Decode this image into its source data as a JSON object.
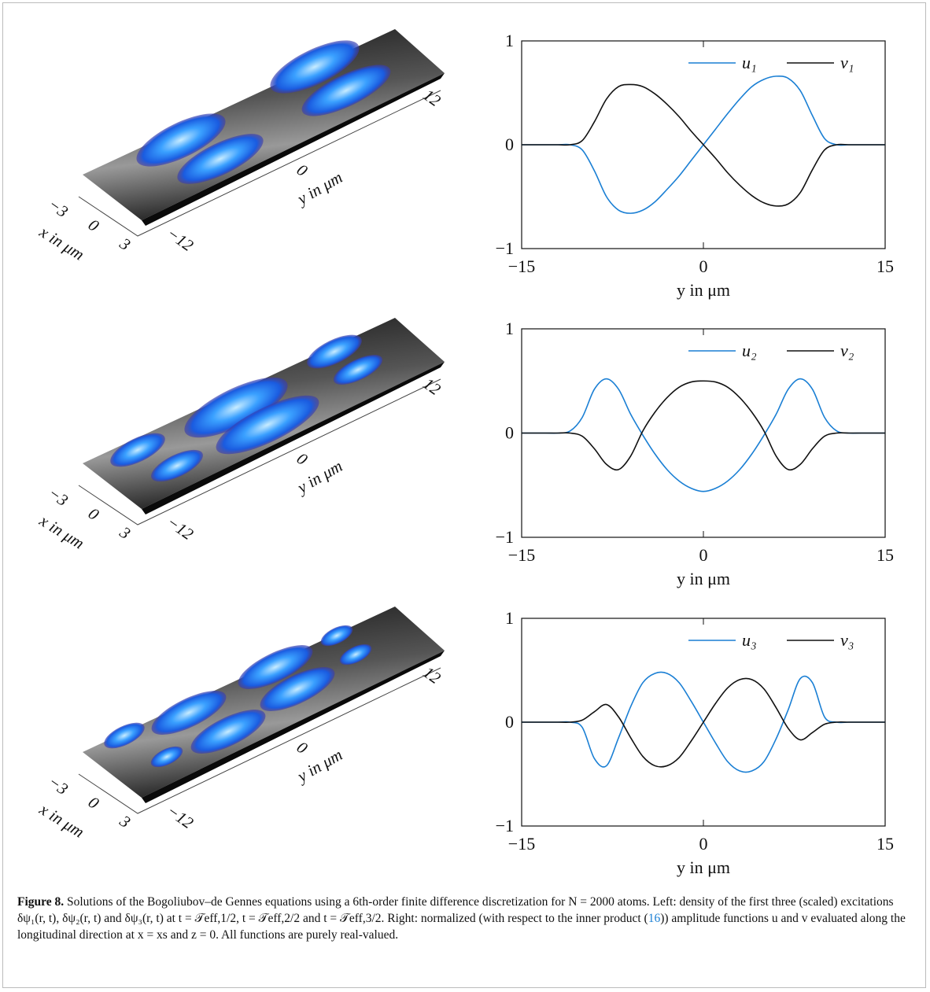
{
  "chart_data": [
    {
      "type": "line",
      "x_label": "y in μm",
      "xlim": [
        -15,
        15
      ],
      "ylim": [
        -1,
        1
      ],
      "xticks": [
        {
          "value": -15,
          "label": "−15"
        },
        0,
        15
      ],
      "yticks": [
        {
          "value": -1,
          "label": "−1"
        },
        0,
        1
      ],
      "legend": "upper right",
      "x": [
        -15,
        -14,
        -13,
        -12,
        -11,
        -10,
        -9,
        -8,
        -7,
        -6,
        -5,
        -4,
        -3,
        -2,
        -1,
        0,
        1,
        2,
        3,
        4,
        5,
        6,
        7,
        8,
        9,
        10,
        11,
        12,
        13,
        14,
        15
      ],
      "series": [
        {
          "name": "u₁",
          "color": "#1a7fd4",
          "values": [
            0,
            0,
            0,
            0,
            0,
            -0.05,
            -0.25,
            -0.5,
            -0.63,
            -0.66,
            -0.63,
            -0.55,
            -0.43,
            -0.3,
            -0.15,
            0,
            0.15,
            0.3,
            0.44,
            0.56,
            0.63,
            0.66,
            0.64,
            0.52,
            0.28,
            0.06,
            0,
            0,
            0,
            0,
            0
          ]
        },
        {
          "name": "v₁",
          "color": "#111111",
          "values": [
            0,
            0,
            0,
            0,
            0,
            0.04,
            0.22,
            0.44,
            0.56,
            0.58,
            0.56,
            0.49,
            0.39,
            0.27,
            0.13,
            0,
            -0.13,
            -0.27,
            -0.39,
            -0.49,
            -0.56,
            -0.59,
            -0.57,
            -0.46,
            -0.24,
            -0.05,
            0,
            0,
            0,
            0,
            0
          ]
        }
      ]
    },
    {
      "type": "line",
      "x_label": "y in μm",
      "xlim": [
        -15,
        15
      ],
      "ylim": [
        -1,
        1
      ],
      "xticks": [
        {
          "value": -15,
          "label": "−15"
        },
        0,
        15
      ],
      "yticks": [
        {
          "value": -1,
          "label": "−1"
        },
        0,
        1
      ],
      "legend": "upper right",
      "x": [
        -15,
        -14,
        -13,
        -12,
        -11,
        -10,
        -9,
        -8,
        -7,
        -6,
        -5,
        -4,
        -3,
        -2,
        -1,
        0,
        1,
        2,
        3,
        4,
        5,
        6,
        7,
        8,
        9,
        10,
        11,
        12,
        13,
        14,
        15
      ],
      "series": [
        {
          "name": "u₂",
          "color": "#1a7fd4",
          "values": [
            0,
            0,
            0,
            0,
            0.02,
            0.15,
            0.42,
            0.52,
            0.42,
            0.18,
            -0.02,
            -0.2,
            -0.35,
            -0.46,
            -0.53,
            -0.56,
            -0.53,
            -0.46,
            -0.35,
            -0.2,
            -0.02,
            0.18,
            0.42,
            0.52,
            0.42,
            0.15,
            0.02,
            0,
            0,
            0,
            0
          ]
        },
        {
          "name": "v₂",
          "color": "#111111",
          "values": [
            0,
            0,
            0,
            0,
            0,
            -0.03,
            -0.15,
            -0.3,
            -0.35,
            -0.22,
            0.02,
            0.2,
            0.34,
            0.44,
            0.49,
            0.5,
            0.49,
            0.44,
            0.34,
            0.2,
            0.02,
            -0.22,
            -0.35,
            -0.3,
            -0.15,
            -0.03,
            0,
            0,
            0,
            0,
            0
          ]
        }
      ]
    },
    {
      "type": "line",
      "x_label": "y in μm",
      "xlim": [
        -15,
        15
      ],
      "ylim": [
        -1,
        1
      ],
      "xticks": [
        {
          "value": -15,
          "label": "−15"
        },
        0,
        15
      ],
      "yticks": [
        {
          "value": -1,
          "label": "−1"
        },
        0,
        1
      ],
      "legend": "upper right",
      "x": [
        -15,
        -14,
        -13,
        -12,
        -11,
        -10,
        -9,
        -8,
        -7,
        -6,
        -5,
        -4,
        -3,
        -2,
        -1,
        0,
        1,
        2,
        3,
        4,
        5,
        6,
        7,
        8,
        9,
        10,
        11,
        12,
        13,
        14,
        15
      ],
      "series": [
        {
          "name": "u₃",
          "color": "#1a7fd4",
          "values": [
            0,
            0,
            0,
            0,
            0,
            -0.05,
            -0.35,
            -0.42,
            -0.15,
            0.15,
            0.38,
            0.47,
            0.47,
            0.38,
            0.2,
            0,
            -0.2,
            -0.38,
            -0.47,
            -0.47,
            -0.38,
            -0.16,
            0.12,
            0.42,
            0.38,
            0.05,
            0,
            0,
            0,
            0,
            0
          ]
        },
        {
          "name": "v₃",
          "color": "#111111",
          "values": [
            0,
            0,
            0,
            0,
            0,
            0.02,
            0.1,
            0.17,
            0.05,
            -0.15,
            -0.33,
            -0.42,
            -0.42,
            -0.34,
            -0.18,
            0,
            0.18,
            0.33,
            0.41,
            0.41,
            0.32,
            0.14,
            -0.06,
            -0.17,
            -0.1,
            -0.02,
            0,
            0,
            0,
            0,
            0
          ]
        }
      ]
    }
  ],
  "surface_plots": [
    {
      "x_label": "x in μm",
      "y_label": "y in μm",
      "x_ticks": [
        "−3",
        "0",
        "3"
      ],
      "y_ticks": [
        "−12",
        "0",
        "12"
      ]
    },
    {
      "x_label": "x in μm",
      "y_label": "y in μm",
      "x_ticks": [
        "−3",
        "0",
        "3"
      ],
      "y_ticks": [
        "−12",
        "0",
        "12"
      ]
    },
    {
      "x_label": "x in μm",
      "y_label": "y in μm",
      "x_ticks": [
        "−3",
        "0",
        "3"
      ],
      "y_ticks": [
        "−12",
        "0",
        "12"
      ]
    }
  ],
  "caption": {
    "label": "Figure 8.",
    "text": "Solutions of the Bogoliubov–de Gennes equations using a 6th-order finite difference discretization for N = 2000 atoms. Left: density of the first three (scaled) excitations δψ₁(r, t), δψ₂(r, t) and δψ₃(r, t) at t = 𝒯eff,1/2, t = 𝒯eff,2/2 and t = 𝒯eff,3/2. Right: normalized (with respect to the inner product (",
    "ref": "16",
    "text_end": ")) amplitude functions u and v evaluated along the longitudinal direction at x = xs and z = 0. All functions are purely real-valued."
  }
}
